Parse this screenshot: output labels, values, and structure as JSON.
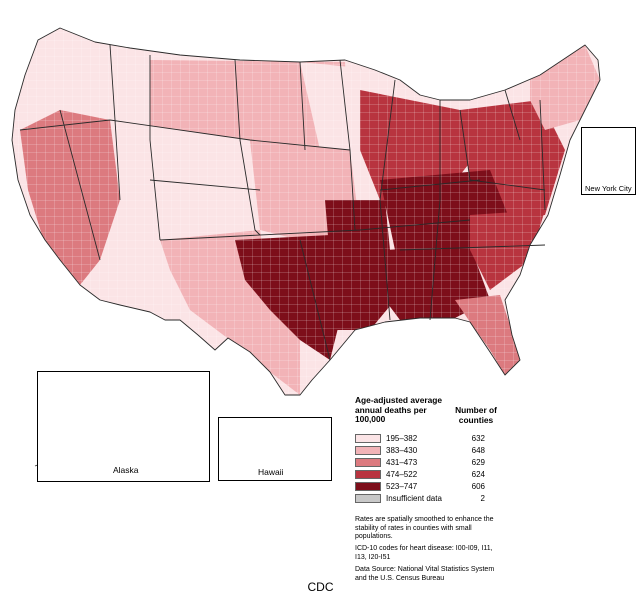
{
  "legend": {
    "title": "Age-adjusted average annual deaths per 100,000",
    "count_header": "Number of counties",
    "classes": [
      {
        "range": "195–382",
        "count": "632",
        "color": "#fbe4e6"
      },
      {
        "range": "383–430",
        "count": "648",
        "color": "#f2b3b7"
      },
      {
        "range": "431–473",
        "count": "629",
        "color": "#dc7a7f"
      },
      {
        "range": "474–522",
        "count": "624",
        "color": "#b8343f"
      },
      {
        "range": "523–747",
        "count": "606",
        "color": "#7d0e1a"
      },
      {
        "range": "Insufficient data",
        "count": "2",
        "color": "#c8c8c8"
      }
    ]
  },
  "insets": {
    "alaska": "Alaska",
    "hawaii": "Hawaii",
    "nyc": "New York City"
  },
  "notes": {
    "smoothing": "Rates are spatially smoothed to enhance the stability of rates in counties with small populations.",
    "icd": "ICD-10 codes for heart disease: I00-I09, I11, I13, I20-I51",
    "source": "Data Source: National Vital Statistics System and the U.S. Census Bureau"
  },
  "footer": "CDC",
  "map_regions": [
    {
      "region": "northwest",
      "class": 0
    },
    {
      "region": "california-nevada",
      "class": 2
    },
    {
      "region": "southwest",
      "class": 0
    },
    {
      "region": "rockies",
      "class": 0
    },
    {
      "region": "northern-plains",
      "class": 1
    },
    {
      "region": "central-plains",
      "class": 1
    },
    {
      "region": "upper-midwest",
      "class": 0
    },
    {
      "region": "texas-west",
      "class": 1
    },
    {
      "region": "texas-east-oklahoma",
      "class": 4
    },
    {
      "region": "lower-mississippi",
      "class": 4
    },
    {
      "region": "deep-south",
      "class": 4
    },
    {
      "region": "appalachia",
      "class": 4
    },
    {
      "region": "great-lakes",
      "class": 3
    },
    {
      "region": "mid-atlantic",
      "class": 3
    },
    {
      "region": "new-england",
      "class": 1
    },
    {
      "region": "florida",
      "class": 2
    },
    {
      "region": "carolinas",
      "class": 3
    }
  ]
}
